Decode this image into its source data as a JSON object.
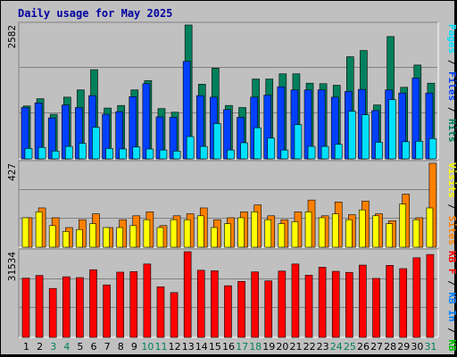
{
  "title": "Daily usage for May 2025",
  "colors": {
    "hits": "#00805c",
    "files": "#0040ff",
    "pages": "#00e0ff",
    "visits": "#ffff00",
    "sites": "#ff8000",
    "kbin": "#0080ff",
    "kbout": "#00c000",
    "kbf": "#ff0000",
    "weekend": "#00805c",
    "weekday": "#000000"
  },
  "chart_data": [
    {
      "type": "bar",
      "name": "hits-files-pages",
      "y_max_label": "2582",
      "ylim": [
        0,
        2582
      ],
      "legend": [
        {
          "text": "Pages",
          "color": "#00e0ff"
        },
        {
          "text": " / ",
          "color": "#000000"
        },
        {
          "text": "Files",
          "color": "#0040ff"
        },
        {
          "text": " / ",
          "color": "#000000"
        },
        {
          "text": "Hits",
          "color": "#00805c"
        }
      ],
      "categories": [
        "1",
        "2",
        "3",
        "4",
        "5",
        "6",
        "7",
        "8",
        "9",
        "10",
        "11",
        "12",
        "13",
        "14",
        "15",
        "16",
        "17",
        "18",
        "19",
        "20",
        "21",
        "22",
        "23",
        "24",
        "25",
        "26",
        "27",
        "28",
        "29",
        "30",
        "31"
      ],
      "series": [
        {
          "key": "hits",
          "values": [
            1020,
            1160,
            860,
            1190,
            1330,
            1720,
            980,
            1030,
            1330,
            1510,
            970,
            900,
            2582,
            1440,
            1750,
            1030,
            990,
            1540,
            1540,
            1640,
            1640,
            1460,
            1450,
            1420,
            1970,
            2090,
            1040,
            2360,
            1380,
            1810,
            1460
          ]
        },
        {
          "key": "files",
          "values": [
            990,
            1080,
            790,
            1040,
            990,
            1220,
            860,
            910,
            1200,
            1450,
            810,
            800,
            1880,
            1220,
            1190,
            950,
            800,
            1190,
            1230,
            1390,
            1330,
            1330,
            1330,
            1190,
            1300,
            1340,
            930,
            1330,
            1270,
            1560,
            1270
          ]
        },
        {
          "key": "pages",
          "values": [
            200,
            220,
            150,
            240,
            300,
            610,
            200,
            190,
            230,
            190,
            170,
            150,
            430,
            240,
            680,
            170,
            310,
            600,
            400,
            170,
            660,
            240,
            240,
            280,
            920,
            850,
            320,
            1140,
            330,
            340,
            390
          ]
        }
      ]
    },
    {
      "type": "bar",
      "name": "sites-visits",
      "y_max_label": "427",
      "ylim": [
        0,
        427
      ],
      "legend": [
        {
          "text": "Visits",
          "color": "#ffff00"
        },
        {
          "text": " / ",
          "color": "#000000"
        },
        {
          "text": "Sites",
          "color": "#ff8000"
        }
      ],
      "series": [
        {
          "key": "sites",
          "values": [
            150,
            200,
            150,
            100,
            140,
            170,
            100,
            140,
            160,
            180,
            110,
            160,
            170,
            200,
            140,
            150,
            180,
            215,
            160,
            140,
            180,
            240,
            160,
            230,
            165,
            235,
            170,
            135,
            270,
            150,
            427
          ]
        },
        {
          "key": "visits",
          "values": [
            150,
            180,
            110,
            80,
            90,
            120,
            100,
            100,
            110,
            140,
            100,
            140,
            140,
            160,
            100,
            120,
            150,
            180,
            140,
            120,
            130,
            180,
            150,
            170,
            140,
            190,
            160,
            120,
            220,
            140,
            200
          ]
        }
      ]
    },
    {
      "type": "bar",
      "name": "kbf",
      "y_max_label": "31534",
      "ylim": [
        0,
        31534
      ],
      "legend": [
        {
          "text": "KB F",
          "color": "#ff0000"
        },
        {
          "text": " / ",
          "color": "#000000"
        },
        {
          "text": "KB In",
          "color": "#0080ff"
        },
        {
          "text": " / ",
          "color": "#000000"
        },
        {
          "text": "KB Out",
          "color": "#00c000"
        }
      ],
      "series": [
        {
          "key": "kbf",
          "values": [
            21800,
            22800,
            18000,
            22300,
            22000,
            24900,
            19300,
            24000,
            24200,
            27000,
            18600,
            16500,
            31534,
            24700,
            24500,
            19000,
            20600,
            24100,
            20800,
            24400,
            27000,
            22900,
            25800,
            24300,
            23900,
            26600,
            21700,
            26500,
            25300,
            29300,
            30500
          ]
        }
      ]
    }
  ]
}
